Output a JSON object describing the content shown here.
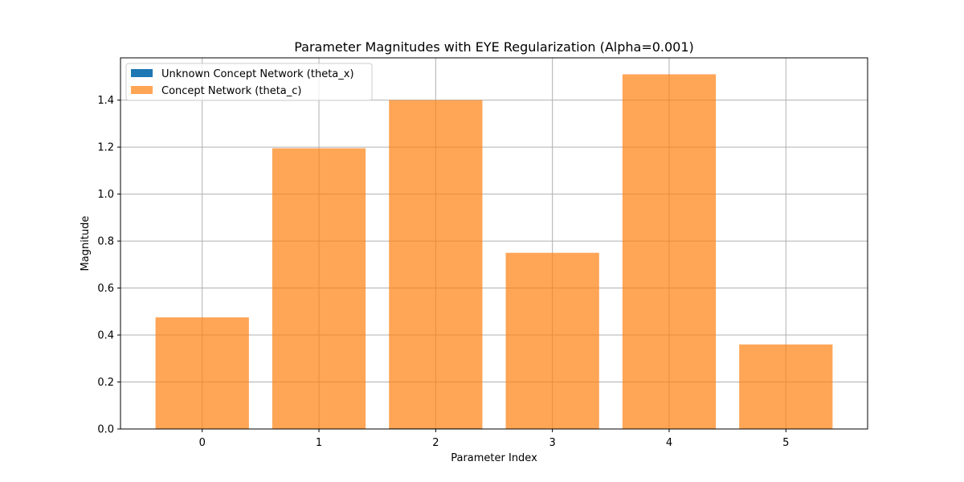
{
  "chart_data": {
    "type": "bar",
    "title": "Parameter Magnitudes with EYE Regularization (Alpha=0.001)",
    "xlabel": "Parameter Index",
    "ylabel": "Magnitude",
    "categories": [
      "0",
      "1",
      "2",
      "3",
      "4",
      "5"
    ],
    "ylim": [
      0,
      1.58
    ],
    "yticks": [
      "0.0",
      "0.2",
      "0.4",
      "0.6",
      "0.8",
      "1.0",
      "1.2",
      "1.4"
    ],
    "grid": true,
    "legend_position": "top-left",
    "series": [
      {
        "name": "Unknown Concept Network (theta_x)",
        "color": "#1f77b4",
        "values": [
          0.0,
          0.0,
          0.003,
          0.0,
          0.0,
          0.0
        ]
      },
      {
        "name": "Concept Network (theta_c)",
        "color": "#ff7f0e",
        "opacity": 0.7,
        "values": [
          0.475,
          1.195,
          1.4,
          0.75,
          1.51,
          0.36
        ]
      }
    ]
  }
}
